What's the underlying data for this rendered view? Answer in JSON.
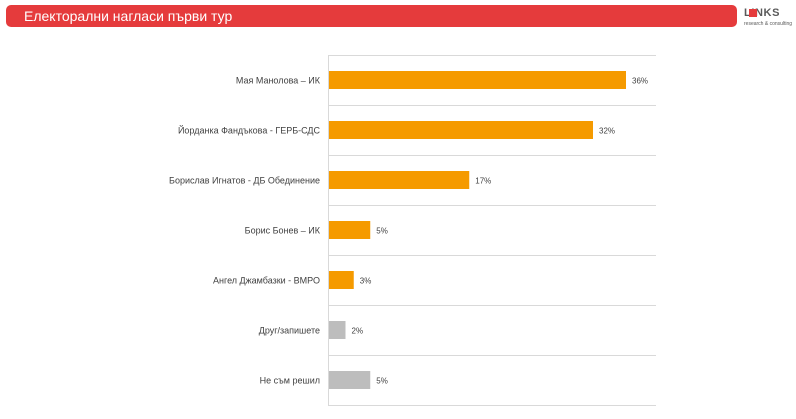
{
  "header": {
    "title": "Електорални нагласи първи тур",
    "logo_text": "LINKS",
    "logo_subtext": "research & consulting"
  },
  "colors": {
    "banner": "#e53b3c",
    "bar_main": "#f59a00",
    "bar_other": "#bdbdbd",
    "gridline": "#d9d9d9",
    "label_text": "#404040"
  },
  "chart_data": {
    "type": "bar",
    "orientation": "horizontal",
    "title": "",
    "xlabel": "",
    "ylabel": "",
    "xlim": [
      0,
      40
    ],
    "grid": true,
    "legend": "none",
    "categories": [
      "Мая Манолова – ИК",
      "Йорданка Фандъкова - ГЕРБ-СДС",
      "Борислав Игнатов - ДБ Обединение",
      "Борис Бонев – ИК",
      "Ангел Джамбазки - ВМРО",
      "Друг/запишете",
      "Не съм решил"
    ],
    "values": [
      36,
      32,
      17,
      5,
      3,
      2,
      5
    ],
    "value_labels": [
      "36%",
      "32%",
      "17%",
      "5%",
      "3%",
      "2%",
      "5%"
    ],
    "bar_colors": [
      "#f59a00",
      "#f59a00",
      "#f59a00",
      "#f59a00",
      "#f59a00",
      "#bdbdbd",
      "#bdbdbd"
    ]
  }
}
